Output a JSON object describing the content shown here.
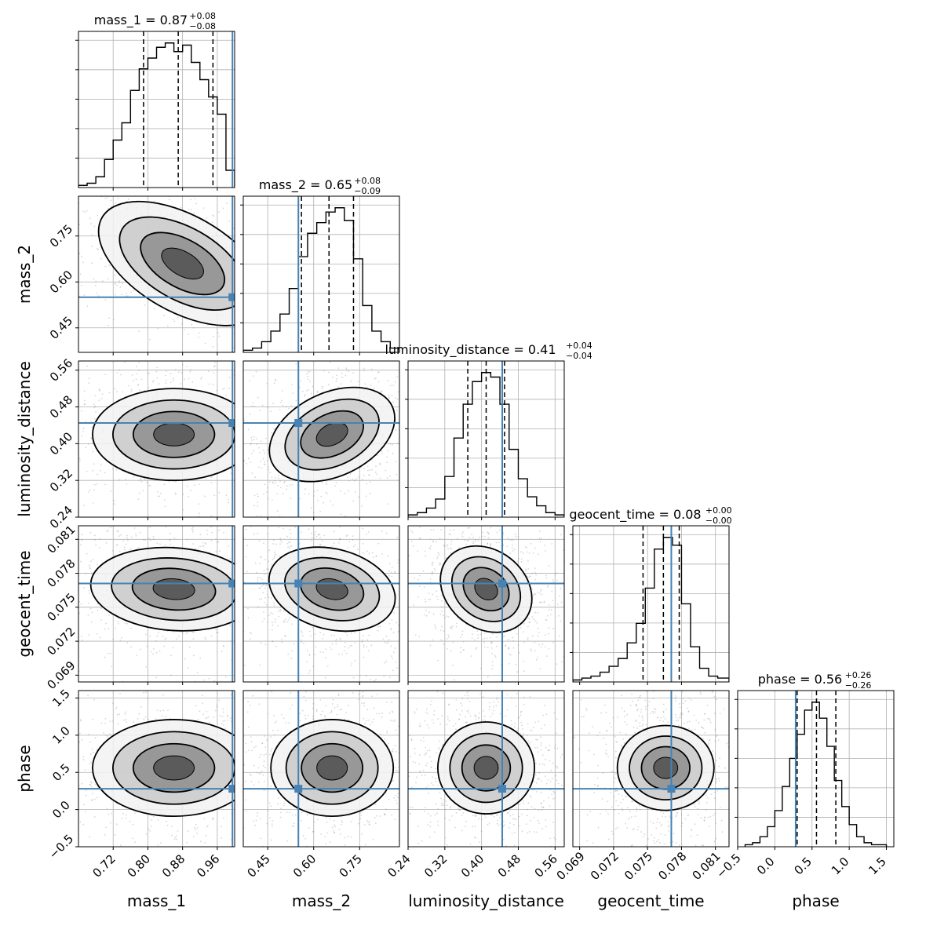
{
  "chart_data": {
    "type": "corner",
    "parameters": [
      "mass_1",
      "mass_2",
      "luminosity_distance",
      "geocent_time",
      "phase"
    ],
    "truths": {
      "mass_1": 0.995,
      "mass_2": 0.55,
      "luminosity_distance": 0.445,
      "geocent_time": 0.0771,
      "phase": 0.28
    },
    "titles": [
      {
        "name": "mass_1",
        "text": "mass_1 = 0.87",
        "plus": "+0.08",
        "minus": "−0.08"
      },
      {
        "name": "mass_2",
        "text": "mass_2 = 0.65",
        "plus": "+0.08",
        "minus": "−0.09"
      },
      {
        "name": "luminosity_distance",
        "text": "luminosity_distance = 0.41",
        "plus": "+0.04",
        "minus": "−0.04"
      },
      {
        "name": "geocent_time",
        "text": "geocent_time = 0.08",
        "plus": "+0.00",
        "minus": "−0.00"
      },
      {
        "name": "phase",
        "text": "phase = 0.56",
        "plus": "+0.26",
        "minus": "−0.26"
      }
    ],
    "axes": [
      {
        "name": "mass_1",
        "label": "mass_1",
        "range": [
          0.64,
          1.0
        ],
        "ticks": [
          0.72,
          0.8,
          0.88,
          0.96
        ],
        "tick_labels": [
          "0.72",
          "0.80",
          "0.88",
          "0.96"
        ],
        "quantiles": [
          0.79,
          0.87,
          0.95
        ]
      },
      {
        "name": "mass_2",
        "label": "mass_2",
        "range": [
          0.37,
          0.88
        ],
        "ticks": [
          0.45,
          0.6,
          0.75
        ],
        "tick_labels": [
          "0.45",
          "0.60",
          "0.75"
        ],
        "quantiles": [
          0.56,
          0.65,
          0.73
        ]
      },
      {
        "name": "luminosity_distance",
        "label": "luminosity_distance",
        "range": [
          0.24,
          0.58
        ],
        "ticks": [
          0.24,
          0.32,
          0.4,
          0.48,
          0.56
        ],
        "tick_labels": [
          "0.24",
          "0.32",
          "0.40",
          "0.48",
          "0.56"
        ],
        "quantiles": [
          0.37,
          0.41,
          0.45
        ]
      },
      {
        "name": "geocent_time",
        "label": "geocent_time",
        "range": [
          0.0684,
          0.0822
        ],
        "ticks": [
          0.069,
          0.072,
          0.075,
          0.078,
          0.081
        ],
        "tick_labels": [
          "0.069",
          "0.072",
          "0.075",
          "0.078",
          "0.081"
        ],
        "quantiles": [
          0.0746,
          0.0764,
          0.0778
        ]
      },
      {
        "name": "phase",
        "label": "phase",
        "range": [
          -0.5,
          1.6
        ],
        "ticks": [
          -0.5,
          0.0,
          0.5,
          1.0,
          1.5
        ],
        "tick_labels": [
          "−0.5",
          "0.0",
          "0.5",
          "1.0",
          "1.5"
        ],
        "quantiles": [
          0.3,
          0.56,
          0.82
        ]
      }
    ],
    "histograms": {
      "mass_1": {
        "bins": [
          0.64,
          0.66,
          0.68,
          0.7,
          0.72,
          0.74,
          0.76,
          0.78,
          0.8,
          0.82,
          0.84,
          0.86,
          0.88,
          0.9,
          0.92,
          0.94,
          0.96,
          0.98,
          1.0
        ],
        "counts": [
          1,
          2,
          5,
          13,
          22,
          30,
          45,
          55,
          60,
          65,
          67,
          63,
          66,
          58,
          50,
          42,
          34,
          8
        ]
      },
      "mass_2": {
        "bins": [
          0.37,
          0.4,
          0.43,
          0.46,
          0.49,
          0.52,
          0.55,
          0.58,
          0.61,
          0.64,
          0.67,
          0.7,
          0.73,
          0.76,
          0.79,
          0.82,
          0.85,
          0.88
        ],
        "counts": [
          1,
          2,
          5,
          10,
          18,
          30,
          45,
          56,
          61,
          66,
          68,
          62,
          44,
          22,
          10,
          5,
          2
        ]
      },
      "luminosity_distance": {
        "bins": [
          0.24,
          0.26,
          0.28,
          0.3,
          0.32,
          0.34,
          0.36,
          0.38,
          0.4,
          0.42,
          0.44,
          0.46,
          0.48,
          0.5,
          0.52,
          0.54,
          0.56,
          0.58
        ],
        "counts": [
          1,
          2,
          4,
          8,
          18,
          35,
          50,
          60,
          64,
          62,
          50,
          30,
          17,
          9,
          5,
          2,
          1
        ]
      },
      "geocent_time": {
        "bins": [
          0.0684,
          0.0692,
          0.07,
          0.0708,
          0.0716,
          0.0724,
          0.0732,
          0.074,
          0.0748,
          0.0756,
          0.0764,
          0.0772,
          0.078,
          0.0788,
          0.0796,
          0.0804,
          0.0812,
          0.0822
        ],
        "counts": [
          1,
          2,
          3,
          5,
          8,
          12,
          20,
          30,
          48,
          68,
          74,
          70,
          40,
          18,
          7,
          3,
          2
        ]
      },
      "phase": {
        "bins": [
          -0.4,
          -0.3,
          -0.2,
          -0.1,
          0.0,
          0.1,
          0.2,
          0.3,
          0.4,
          0.5,
          0.6,
          0.7,
          0.8,
          0.9,
          1.0,
          1.1,
          1.2,
          1.3,
          1.4,
          1.5
        ],
        "counts": [
          1,
          2,
          5,
          10,
          18,
          30,
          44,
          56,
          68,
          72,
          64,
          50,
          33,
          20,
          11,
          5,
          2,
          1,
          1
        ]
      }
    },
    "joint_peaks": {
      "mass_1|mass_2": {
        "cx": 0.88,
        "cy": 0.66,
        "sx": 0.075,
        "sy": 0.075,
        "rho": -0.6
      },
      "mass_1|luminosity_distance": {
        "cx": 0.86,
        "cy": 0.42,
        "sx": 0.075,
        "sy": 0.04,
        "rho": 0.0
      },
      "mass_2|luminosity_distance": {
        "cx": 0.66,
        "cy": 0.42,
        "sx": 0.08,
        "sy": 0.04,
        "rho": 0.35
      },
      "mass_1|geocent_time": {
        "cx": 0.86,
        "cy": 0.0766,
        "sx": 0.075,
        "sy": 0.0015,
        "rho": -0.1
      },
      "mass_2|geocent_time": {
        "cx": 0.66,
        "cy": 0.0766,
        "sx": 0.08,
        "sy": 0.0015,
        "rho": -0.2
      },
      "luminosity_distance|geocent_time": {
        "cx": 0.41,
        "cy": 0.0766,
        "sx": 0.04,
        "sy": 0.0015,
        "rho": -0.3
      },
      "mass_1|phase": {
        "cx": 0.86,
        "cy": 0.56,
        "sx": 0.075,
        "sy": 0.26,
        "rho": 0.0
      },
      "mass_2|phase": {
        "cx": 0.66,
        "cy": 0.56,
        "sx": 0.08,
        "sy": 0.26,
        "rho": 0.0
      },
      "luminosity_distance|phase": {
        "cx": 0.41,
        "cy": 0.56,
        "sx": 0.04,
        "sy": 0.26,
        "rho": 0.0
      },
      "geocent_time|phase": {
        "cx": 0.0766,
        "cy": 0.56,
        "sx": 0.0015,
        "sy": 0.26,
        "rho": 0.0
      }
    },
    "contour_levels_sigma": [
      0.5,
      1.0,
      1.5,
      2.0
    ],
    "colors": {
      "truth": "#4682b4",
      "contour": "#000000",
      "grid": "#b0b0b0",
      "hist": "#000000",
      "scatter": "#8c8c8c"
    },
    "grid": true
  }
}
